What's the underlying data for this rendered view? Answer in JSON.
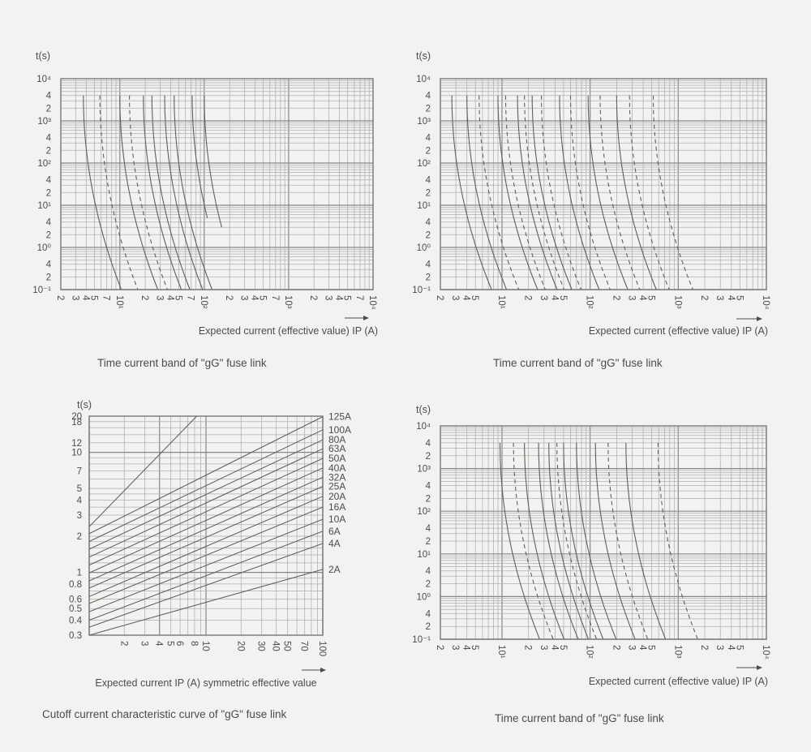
{
  "style": {
    "background": "#f2f2f0",
    "grid_minor": "#aeaeae",
    "grid_major": "#878787",
    "border": "#6e6e6e",
    "curve": "#5f5f5f",
    "text": "#4c4c4c"
  },
  "chart_data": [
    {
      "id": "top-left",
      "type": "line",
      "subtype": "time-current-band",
      "title": "Time current band of \"gG\" fuse link",
      "xlabel": "Expected current (effective value) IP (A)",
      "ylabel": "t(s)",
      "x_scale": "log",
      "y_scale": "log",
      "xlim": [
        2,
        10000
      ],
      "ylim": [
        0.1,
        10000
      ],
      "grid": true,
      "legend": "none",
      "x_labeled_mantissas": [
        2,
        3,
        4,
        5,
        7
      ],
      "y_labeled_mantissas": [
        4,
        2
      ],
      "x_decade_labels": [
        "10¹",
        "10²",
        "10³",
        "10⁴"
      ],
      "y_decade_labels": [
        "10⁴",
        "10³",
        "10²",
        "10¹",
        "10⁰",
        "10⁻¹"
      ],
      "curves": [
        {
          "style": "solid",
          "i_melt_4000s": 3.7,
          "t_end": 0.1
        },
        {
          "style": "dashed",
          "i_melt_4000s": 5.8,
          "t_end": 0.1
        },
        {
          "style": "solid",
          "i_melt_4000s": 10,
          "t_end": 0.1
        },
        {
          "style": "dashed",
          "i_melt_4000s": 13,
          "t_end": 0.1
        },
        {
          "style": "solid",
          "i_melt_4000s": 19,
          "t_end": 0.1
        },
        {
          "style": "solid",
          "i_melt_4000s": 24,
          "t_end": 0.1
        },
        {
          "style": "solid",
          "i_melt_4000s": 34,
          "t_end": 0.1
        },
        {
          "style": "solid",
          "i_melt_4000s": 44,
          "t_end": 0.1
        },
        {
          "style": "solid",
          "i_melt_4000s": 72,
          "t_end": 5
        },
        {
          "style": "solid",
          "i_melt_4000s": 100,
          "t_end": 3
        }
      ]
    },
    {
      "id": "top-right",
      "type": "line",
      "subtype": "time-current-band",
      "title": "Time current band of \"gG\" fuse link",
      "xlabel": "Expected current (effective value) IP (A)",
      "ylabel": "t(s)",
      "x_scale": "log",
      "y_scale": "log",
      "xlim": [
        2,
        10000
      ],
      "ylim": [
        0.1,
        10000
      ],
      "grid": true,
      "legend": "none",
      "x_labeled_mantissas": [
        2,
        3,
        4,
        5
      ],
      "y_labeled_mantissas": [
        4,
        2
      ],
      "x_decade_labels": [
        "10¹",
        "10²",
        "10³",
        "10⁴"
      ],
      "y_decade_labels": [
        "10⁴",
        "10³",
        "10²",
        "10¹",
        "10⁰",
        "10⁻¹"
      ],
      "curves": [
        {
          "style": "solid",
          "i_melt_4000s": 2.7,
          "t_end": 0.1
        },
        {
          "style": "solid",
          "i_melt_4000s": 4.0,
          "t_end": 0.1
        },
        {
          "style": "dashed",
          "i_melt_4000s": 5.5,
          "t_end": 0.1
        },
        {
          "style": "solid",
          "i_melt_4000s": 9,
          "t_end": 0.1
        },
        {
          "style": "dashed",
          "i_melt_4000s": 11,
          "t_end": 0.1
        },
        {
          "style": "solid",
          "i_melt_4000s": 15,
          "t_end": 0.1
        },
        {
          "style": "dashed",
          "i_melt_4000s": 18,
          "t_end": 0.1
        },
        {
          "style": "solid",
          "i_melt_4000s": 22,
          "t_end": 0.1
        },
        {
          "style": "dashed",
          "i_melt_4000s": 28,
          "t_end": 0.1
        },
        {
          "style": "solid",
          "i_melt_4000s": 45,
          "t_end": 0.1
        },
        {
          "style": "dashed",
          "i_melt_4000s": 60,
          "t_end": 0.1
        },
        {
          "style": "solid",
          "i_melt_4000s": 95,
          "t_end": 0.1
        },
        {
          "style": "dashed",
          "i_melt_4000s": 130,
          "t_end": 0.1
        },
        {
          "style": "solid",
          "i_melt_4000s": 200,
          "t_end": 0.1
        },
        {
          "style": "dashed",
          "i_melt_4000s": 280,
          "t_end": 0.1
        },
        {
          "style": "dashed",
          "i_melt_4000s": 520,
          "t_end": 0.1
        }
      ]
    },
    {
      "id": "bottom-left",
      "type": "line",
      "subtype": "cutoff-current-characteristic",
      "title": "Cutoff current characteristic curve of \"gG\" fuse link",
      "xlabel": "Expected current IP (A) symmetric effective value",
      "ylabel": "t(s)",
      "x_scale": "log",
      "y_scale": "log",
      "xlim": [
        1,
        100
      ],
      "ylim": [
        0.3,
        20
      ],
      "grid": true,
      "legend": "right-edge-labels",
      "x_tick_values": [
        2,
        3,
        4,
        5,
        6,
        8,
        10,
        20,
        30,
        40,
        50,
        70,
        100
      ],
      "x_tick_labels": [
        "2",
        "3",
        "4",
        "5",
        "6",
        "8",
        "10",
        "20",
        "30",
        "40",
        "50",
        "70",
        "100"
      ],
      "y_tick_values": [
        20,
        18,
        12,
        10,
        7,
        5,
        4,
        3,
        2,
        1,
        0.8,
        0.6,
        0.5,
        0.4,
        0.3
      ],
      "y_tick_labels": [
        "20",
        "18",
        "12",
        "10",
        "7",
        "5",
        "4",
        "3",
        "2",
        "1",
        "0.8",
        "0.6",
        "0.5",
        "0.4",
        "0.3"
      ],
      "x_grid_values": [
        1,
        2,
        3,
        4,
        5,
        6,
        7,
        8,
        9,
        10,
        20,
        30,
        40,
        50,
        60,
        70,
        80,
        90,
        100
      ],
      "y_grid_values": [
        0.3,
        0.4,
        0.5,
        0.6,
        0.7,
        0.8,
        0.9,
        1,
        1.2,
        1.4,
        1.6,
        1.8,
        2,
        2.5,
        3,
        3.5,
        4,
        4.5,
        5,
        6,
        7,
        8,
        9,
        10,
        12,
        14,
        16,
        18,
        20
      ],
      "rating_lines": [
        {
          "label": "125A",
          "start_xy": [
            1,
            2.1
          ],
          "end_xy": [
            100,
            19.8
          ]
        },
        {
          "label": "100A",
          "start_xy": [
            1,
            1.81
          ],
          "end_xy": [
            100,
            15.4
          ]
        },
        {
          "label": "80A",
          "start_xy": [
            1,
            1.56
          ],
          "end_xy": [
            100,
            12.7
          ]
        },
        {
          "label": "63A",
          "start_xy": [
            1,
            1.34
          ],
          "end_xy": [
            100,
            10.7
          ]
        },
        {
          "label": "50A",
          "start_xy": [
            1,
            1.15
          ],
          "end_xy": [
            100,
            8.9
          ]
        },
        {
          "label": "40A",
          "start_xy": [
            1,
            0.99
          ],
          "end_xy": [
            100,
            7.4
          ]
        },
        {
          "label": "32A",
          "start_xy": [
            1,
            0.85
          ],
          "end_xy": [
            100,
            6.2
          ]
        },
        {
          "label": "25A",
          "start_xy": [
            1,
            0.74
          ],
          "end_xy": [
            100,
            5.2
          ]
        },
        {
          "label": "20A",
          "start_xy": [
            1,
            0.63
          ],
          "end_xy": [
            100,
            4.3
          ]
        },
        {
          "label": "16A",
          "start_xy": [
            1,
            0.55
          ],
          "end_xy": [
            100,
            3.5
          ]
        },
        {
          "label": "10A",
          "start_xy": [
            1,
            0.47
          ],
          "end_xy": [
            100,
            2.77
          ]
        },
        {
          "label": "6A",
          "start_xy": [
            1,
            0.4
          ],
          "end_xy": [
            100,
            2.2
          ]
        },
        {
          "label": "4A",
          "start_xy": [
            1,
            0.35
          ],
          "end_xy": [
            100,
            1.74
          ]
        },
        {
          "label": "2A",
          "start_xy": [
            1,
            0.3
          ],
          "end_xy": [
            100,
            1.06
          ]
        }
      ],
      "reference_line": {
        "start_xy": [
          1,
          2.4
        ],
        "end_xy": [
          8.33,
          20
        ]
      }
    },
    {
      "id": "bottom-right",
      "type": "line",
      "subtype": "time-current-band",
      "title": "Time current band of \"gG\" fuse link",
      "xlabel": "Expected current (effective value) IP (A)",
      "ylabel": "t(s)",
      "x_scale": "log",
      "y_scale": "log",
      "xlim": [
        2,
        10000
      ],
      "ylim": [
        0.1,
        10000
      ],
      "grid": true,
      "legend": "none",
      "x_labeled_mantissas": [
        2,
        3,
        4,
        5
      ],
      "y_labeled_mantissas": [
        4,
        2
      ],
      "x_decade_labels": [
        "10¹",
        "10²",
        "10³",
        "10⁴"
      ],
      "y_decade_labels": [
        "10⁴",
        "10³",
        "10²",
        "10¹",
        "10⁰",
        "10⁻¹"
      ],
      "curves": [
        {
          "style": "solid",
          "i_melt_4000s": 9.5,
          "t_end": 0.1
        },
        {
          "style": "dashed",
          "i_melt_4000s": 13.5,
          "t_end": 0.1
        },
        {
          "style": "solid",
          "i_melt_4000s": 18,
          "t_end": 0.1
        },
        {
          "style": "solid",
          "i_melt_4000s": 26,
          "t_end": 0.1
        },
        {
          "style": "solid",
          "i_melt_4000s": 34,
          "t_end": 0.1
        },
        {
          "style": "dashed",
          "i_melt_4000s": 42,
          "t_end": 0.1
        },
        {
          "style": "solid",
          "i_melt_4000s": 50,
          "t_end": 0.1
        },
        {
          "style": "solid",
          "i_melt_4000s": 70,
          "t_end": 0.1
        },
        {
          "style": "solid",
          "i_melt_4000s": 115,
          "t_end": 0.1
        },
        {
          "style": "dashed",
          "i_melt_4000s": 160,
          "t_end": 0.1
        },
        {
          "style": "solid",
          "i_melt_4000s": 255,
          "t_end": 0.1
        },
        {
          "style": "dashed",
          "i_melt_4000s": 590,
          "t_end": 0.1
        }
      ]
    }
  ]
}
